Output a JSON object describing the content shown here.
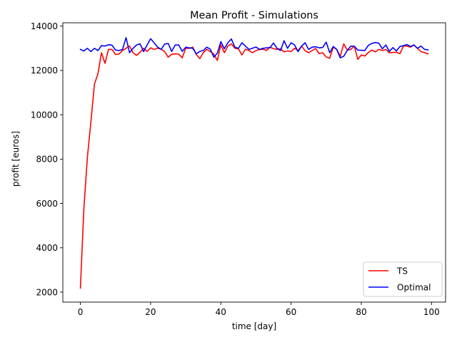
{
  "chart_data": {
    "type": "line",
    "title": "Mean Profit - Simulations",
    "xlabel": "time [day]",
    "ylabel": "profit [euros]",
    "xlim": [
      -5,
      104
    ],
    "ylim": [
      1550,
      14150
    ],
    "xticks": [
      0,
      20,
      40,
      60,
      80,
      100
    ],
    "yticks": [
      2000,
      4000,
      6000,
      8000,
      10000,
      12000,
      14000
    ],
    "grid": false,
    "legend_position": "lower-right",
    "series": [
      {
        "name": "TS",
        "color": "#ff0000",
        "x": [
          0,
          1,
          2,
          3,
          4,
          5,
          6,
          7,
          8,
          9,
          10,
          11,
          12,
          13,
          14,
          15,
          16,
          17,
          18,
          19,
          20,
          21,
          22,
          23,
          24,
          25,
          26,
          27,
          28,
          29,
          30,
          31,
          32,
          33,
          34,
          35,
          36,
          37,
          38,
          39,
          40,
          41,
          42,
          43,
          44,
          45,
          46,
          47,
          48,
          49,
          50,
          51,
          52,
          53,
          54,
          55,
          56,
          57,
          58,
          59,
          60,
          61,
          62,
          63,
          64,
          65,
          66,
          67,
          68,
          69,
          70,
          71,
          72,
          73,
          74,
          75,
          76,
          77,
          78,
          79,
          80,
          81,
          82,
          83,
          84,
          85,
          86,
          87,
          88,
          89,
          90,
          91,
          92,
          93,
          94,
          95,
          96,
          97,
          98,
          99
        ],
        "values": [
          2180,
          5800,
          8100,
          9700,
          11380,
          11850,
          12800,
          12320,
          12950,
          12950,
          12720,
          12740,
          12900,
          13000,
          13100,
          12800,
          12680,
          12820,
          13000,
          12860,
          13020,
          12950,
          13000,
          12960,
          12850,
          12600,
          12730,
          12750,
          12740,
          12570,
          13000,
          13000,
          13050,
          12720,
          12530,
          12800,
          12950,
          12850,
          12740,
          12450,
          13150,
          12800,
          13100,
          13200,
          13000,
          12980,
          12700,
          12960,
          12900,
          12800,
          12900,
          12940,
          12960,
          12900,
          13050,
          12980,
          12950,
          12980,
          12840,
          12880,
          12850,
          13000,
          12900,
          13100,
          12890,
          12800,
          12900,
          12990,
          12760,
          12800,
          12610,
          12550,
          13050,
          12950,
          12640,
          13200,
          12920,
          12950,
          13100,
          12500,
          12700,
          12650,
          12810,
          12920,
          12840,
          12950,
          12900,
          12950,
          12800,
          12810,
          12820,
          12760,
          13100,
          13100,
          13050,
          13150,
          13000,
          12850,
          12800,
          12750
        ]
      },
      {
        "name": "Optimal",
        "color": "#0000ff",
        "x": [
          0,
          1,
          2,
          3,
          4,
          5,
          6,
          7,
          8,
          9,
          10,
          11,
          12,
          13,
          14,
          15,
          16,
          17,
          18,
          19,
          20,
          21,
          22,
          23,
          24,
          25,
          26,
          27,
          28,
          29,
          30,
          31,
          32,
          33,
          34,
          35,
          36,
          37,
          38,
          39,
          40,
          41,
          42,
          43,
          44,
          45,
          46,
          47,
          48,
          49,
          50,
          51,
          52,
          53,
          54,
          55,
          56,
          57,
          58,
          59,
          60,
          61,
          62,
          63,
          64,
          65,
          66,
          67,
          68,
          69,
          70,
          71,
          72,
          73,
          74,
          75,
          76,
          77,
          78,
          79,
          80,
          81,
          82,
          83,
          84,
          85,
          86,
          87,
          88,
          89,
          90,
          91,
          92,
          93,
          94,
          95,
          96,
          97,
          98,
          99
        ],
        "values": [
          12950,
          12880,
          13000,
          12850,
          13000,
          12900,
          13120,
          13100,
          13160,
          13140,
          12920,
          12900,
          12950,
          13480,
          12800,
          13000,
          13150,
          13200,
          12850,
          13150,
          13430,
          13250,
          13050,
          12950,
          13190,
          13220,
          12860,
          13150,
          13150,
          12860,
          13050,
          13020,
          13000,
          12750,
          12860,
          12900,
          13050,
          12960,
          12600,
          12780,
          13300,
          12980,
          13250,
          13420,
          13050,
          13000,
          13250,
          13100,
          12950,
          13000,
          13060,
          12950,
          13000,
          13020,
          13030,
          13240,
          13000,
          12900,
          13340,
          13000,
          13250,
          13150,
          12850,
          13100,
          13250,
          12950,
          13050,
          13070,
          13020,
          13040,
          13280,
          12800,
          13080,
          12950,
          12570,
          12640,
          12900,
          13100,
          13090,
          12920,
          12910,
          12900,
          13130,
          13220,
          13260,
          13230,
          12980,
          13150,
          12860,
          13030,
          12880,
          13080,
          13120,
          13170,
          13080,
          13150,
          13000,
          13100,
          12950,
          12930
        ]
      }
    ]
  }
}
